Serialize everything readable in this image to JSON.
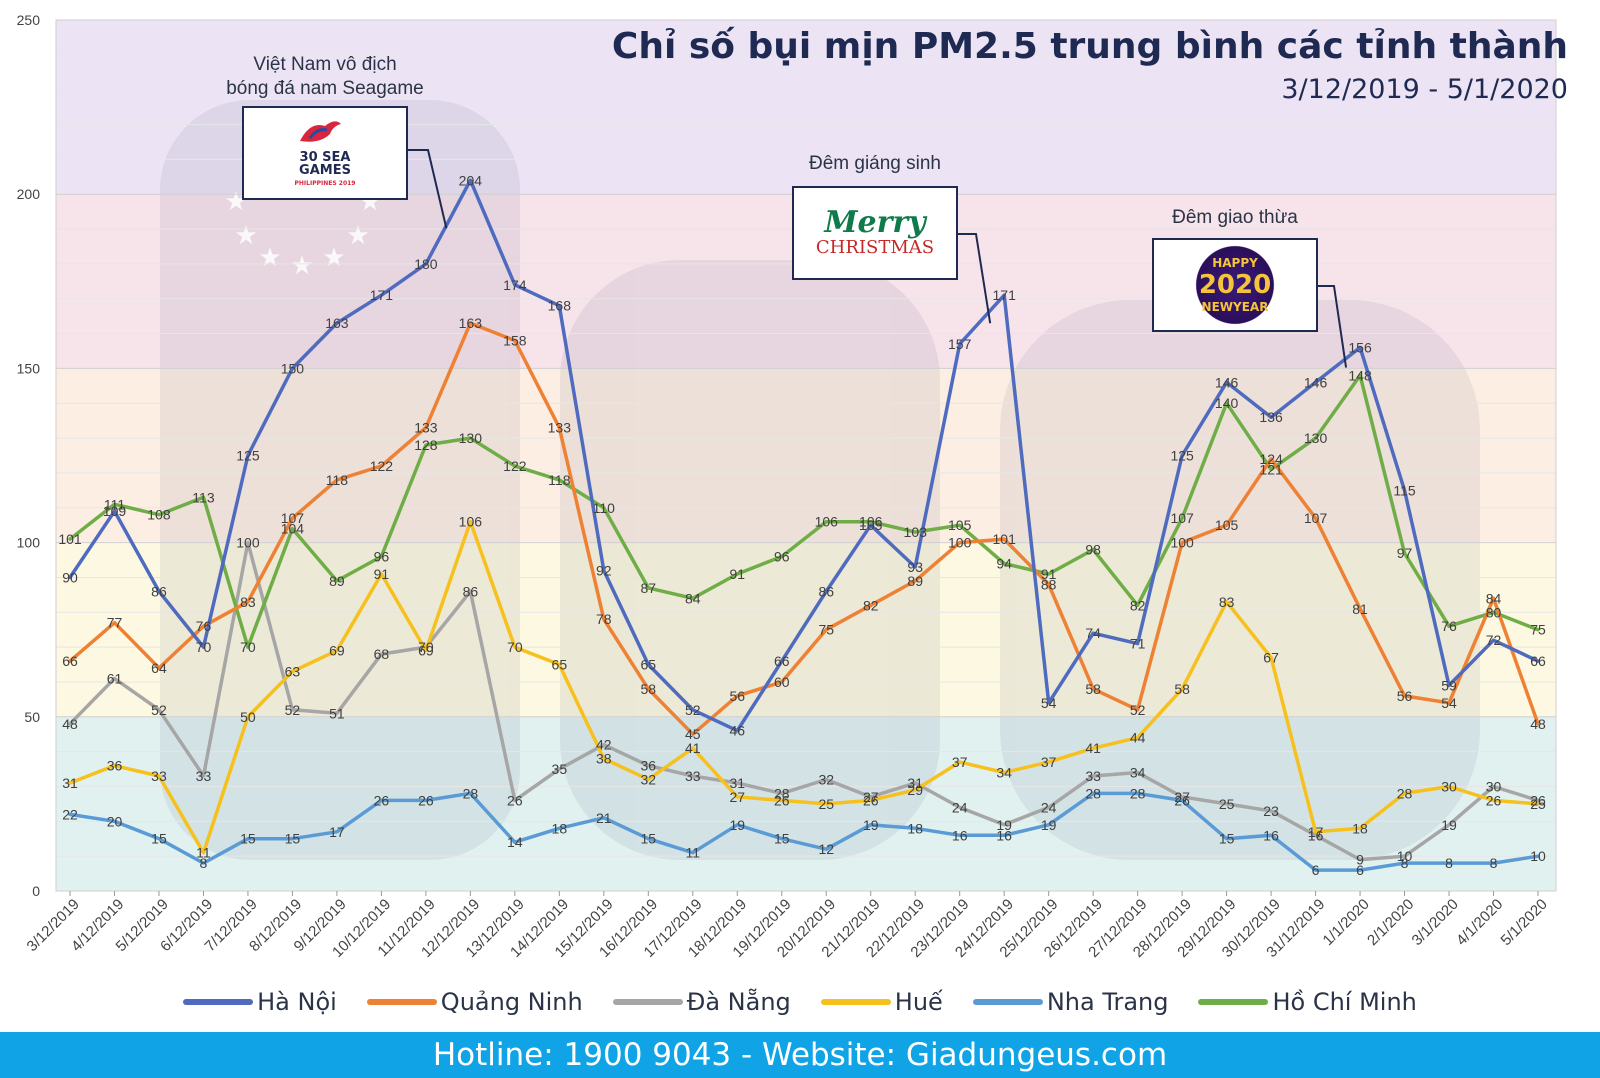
{
  "title": "Chỉ số bụi mịn PM2.5 trung bình các tỉnh thành",
  "subtitle": "3/12/2019 - 5/1/2020",
  "footer": "Hotline: 1900 9043 - Website: Giadungeus.com",
  "annotations": {
    "seagame_title_1": "Việt Nam vô địch",
    "seagame_title_2": "bóng đá nam Seagame",
    "seagame_logo_1": "30",
    "seagame_logo_2": "SEA",
    "seagame_logo_3": "GAMES",
    "seagame_logo_4": "PHILIPPINES 2019",
    "xmas_title": "Đêm giáng sinh",
    "xmas_logo_1": "Merry",
    "xmas_logo_2": "CHRISTMAS",
    "newyear_title": "Đêm giao thừa",
    "newyear_logo_1": "HAPPY",
    "newyear_logo_2": "2020",
    "newyear_logo_3": "NEWYEAR"
  },
  "colors": {
    "Hà Nội": "#4f6bbf",
    "Quảng Ninh": "#ee8133",
    "Đà Nẵng": "#a6a6a6",
    "Huế": "#f6c01d",
    "Nha Trang": "#5b9bd5",
    "Hồ Chí Minh": "#6fad47",
    "footer": "#10a4e6",
    "title": "#1f2a52"
  },
  "chart_data": {
    "type": "line",
    "ylim": [
      0,
      250
    ],
    "yticks": [
      0,
      50,
      100,
      150,
      200,
      250
    ],
    "grid": "horizontal",
    "legend_position": "bottom",
    "x": [
      "3/12/2019",
      "4/12/2019",
      "5/12/2019",
      "6/12/2019",
      "7/12/2019",
      "8/12/2019",
      "9/12/2019",
      "10/12/2019",
      "11/12/2019",
      "12/12/2019",
      "13/12/2019",
      "14/12/2019",
      "15/12/2019",
      "16/12/2019",
      "17/12/2019",
      "18/12/2019",
      "19/12/2019",
      "20/12/2019",
      "21/12/2019",
      "22/12/2019",
      "23/12/2019",
      "24/12/2019",
      "25/12/2019",
      "26/12/2019",
      "27/12/2019",
      "28/12/2019",
      "29/12/2019",
      "30/12/2019",
      "31/12/2019",
      "1/1/2020",
      "2/1/2020",
      "3/1/2020",
      "4/1/2020",
      "5/1/2020"
    ],
    "background_bands": [
      {
        "from": 0,
        "to": 50,
        "color": "#e1f1f0"
      },
      {
        "from": 50,
        "to": 100,
        "color": "#fdf8e1"
      },
      {
        "from": 100,
        "to": 150,
        "color": "#fdeee3"
      },
      {
        "from": 150,
        "to": 200,
        "color": "#f7e3ea"
      },
      {
        "from": 200,
        "to": 250,
        "color": "#ece3f4"
      }
    ],
    "series": [
      {
        "name": "Hà Nội",
        "values": [
          90,
          109,
          86,
          70,
          125,
          150,
          163,
          171,
          180,
          204,
          174,
          168,
          92,
          65,
          52,
          46,
          66,
          86,
          105,
          93,
          157,
          171,
          54,
          74,
          71,
          125,
          146,
          136,
          146,
          156,
          115,
          59,
          72,
          66
        ]
      },
      {
        "name": "Quảng Ninh",
        "values": [
          66,
          77,
          64,
          76,
          83,
          107,
          118,
          122,
          133,
          163,
          158,
          133,
          78,
          58,
          45,
          56,
          60,
          75,
          82,
          89,
          100,
          101,
          88,
          58,
          52,
          100,
          105,
          124,
          107,
          81,
          56,
          54,
          84,
          48
        ]
      },
      {
        "name": "Đà Nẵng",
        "values": [
          48,
          61,
          52,
          33,
          100,
          52,
          51,
          68,
          70,
          86,
          26,
          35,
          42,
          36,
          33,
          31,
          28,
          32,
          27,
          31,
          24,
          19,
          24,
          33,
          34,
          27,
          25,
          23,
          16,
          9,
          10,
          19,
          30,
          26
        ]
      },
      {
        "name": "Huế",
        "values": [
          31,
          36,
          33,
          11,
          50,
          63,
          69,
          91,
          69,
          106,
          70,
          65,
          38,
          32,
          41,
          27,
          26,
          25,
          26,
          29,
          37,
          34,
          37,
          41,
          44,
          58,
          83,
          67,
          17,
          18,
          28,
          30,
          26,
          25
        ]
      },
      {
        "name": "Nha Trang",
        "values": [
          22,
          20,
          15,
          8,
          15,
          15,
          17,
          26,
          26,
          28,
          14,
          18,
          21,
          15,
          11,
          19,
          15,
          12,
          19,
          18,
          16,
          16,
          19,
          28,
          28,
          26,
          15,
          16,
          6,
          6,
          8,
          8,
          8,
          10
        ]
      },
      {
        "name": "Hồ Chí Minh",
        "values": [
          101,
          111,
          108,
          113,
          70,
          104,
          89,
          96,
          128,
          130,
          122,
          118,
          110,
          87,
          84,
          91,
          96,
          106,
          106,
          103,
          105,
          94,
          91,
          98,
          82,
          107,
          140,
          121,
          130,
          148,
          97,
          76,
          80,
          75
        ]
      }
    ]
  }
}
